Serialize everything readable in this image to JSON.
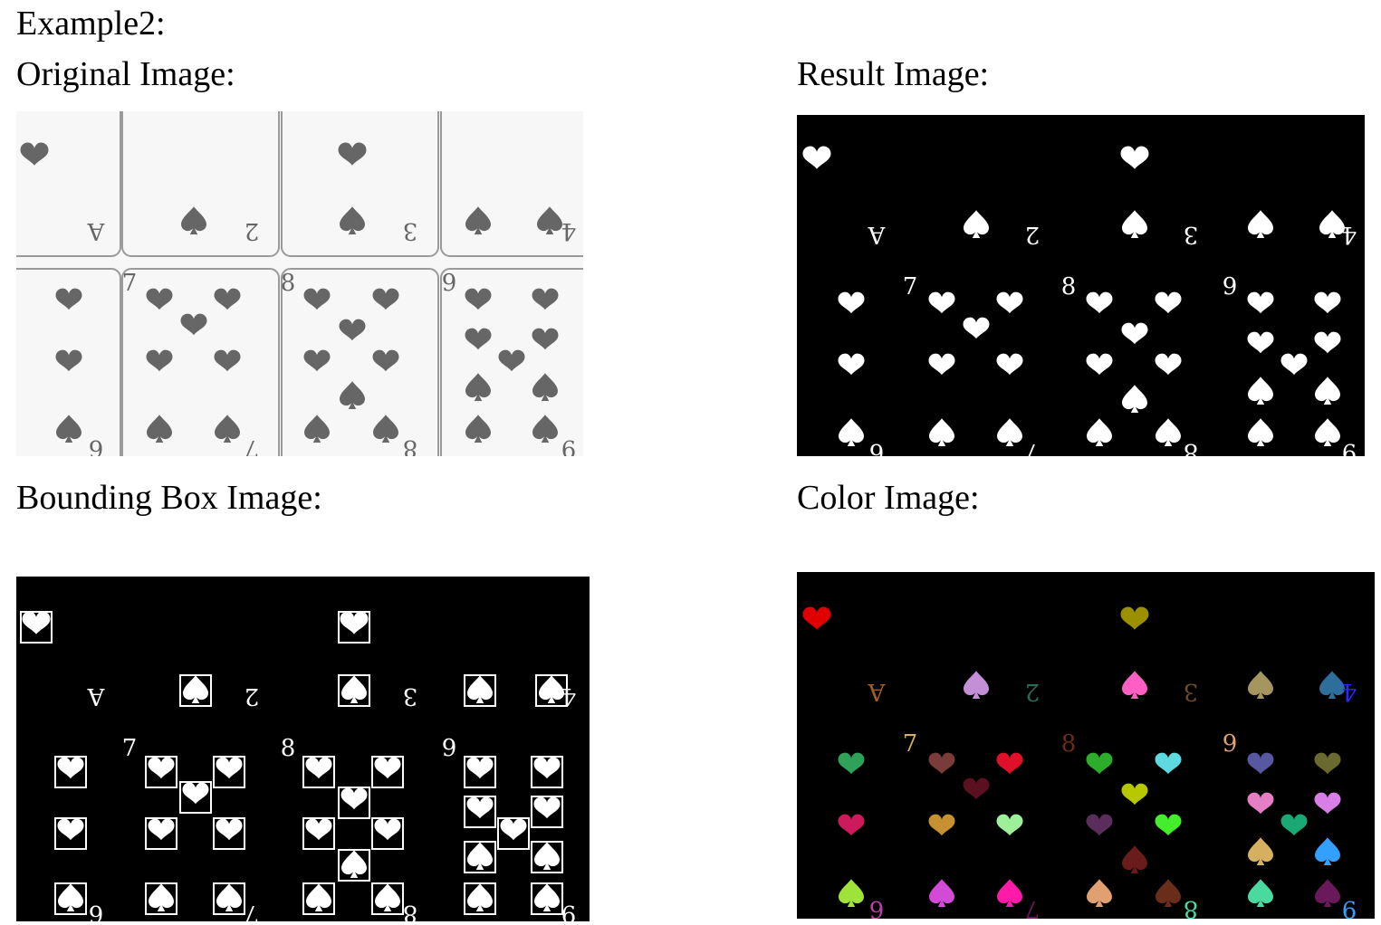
{
  "doc": {
    "example_title": "Example2:",
    "captions": {
      "original": "Original Image:",
      "result": "Result Image:",
      "bbox": "Bounding Box Image:",
      "color": "Color Image:"
    }
  },
  "figure": {
    "card_ranks_top_row": [
      "A",
      "2",
      "3",
      "4"
    ],
    "card_ranks_bottom_row": [
      "6",
      "7",
      "8",
      "9"
    ],
    "colors": {
      "card_face": "#f7f7f7",
      "card_border": "#9a9a9a",
      "pip_gray": "#666666",
      "mask_bg": "#000000",
      "mask_fg": "#ffffff",
      "component_palette": [
        "#e00000",
        "#9a9000",
        "#c38fd6",
        "#ff5fc2",
        "#a59660",
        "#2d6f9a",
        "#2fa25a",
        "#cc1a5c",
        "#7a3b3b",
        "#e0102a",
        "#5a1020",
        "#c79030",
        "#9eef9a",
        "#2cae2c",
        "#5fd9e0",
        "#b8c800",
        "#5a2d5a",
        "#44ee2a",
        "#5858a0",
        "#6a6a30",
        "#e67ec6",
        "#d77fe6",
        "#1aa874",
        "#9ee23a",
        "#d24ad6",
        "#ff1aaa",
        "#6a1b1b",
        "#e0a070",
        "#6a2d1a",
        "#d4b060",
        "#33a0ff",
        "#4adaa0",
        "#6a1a5a",
        "#b83fa8",
        "#2a2aff",
        "#6a4b2a",
        "#2c6a5a",
        "#a06020"
      ]
    }
  }
}
